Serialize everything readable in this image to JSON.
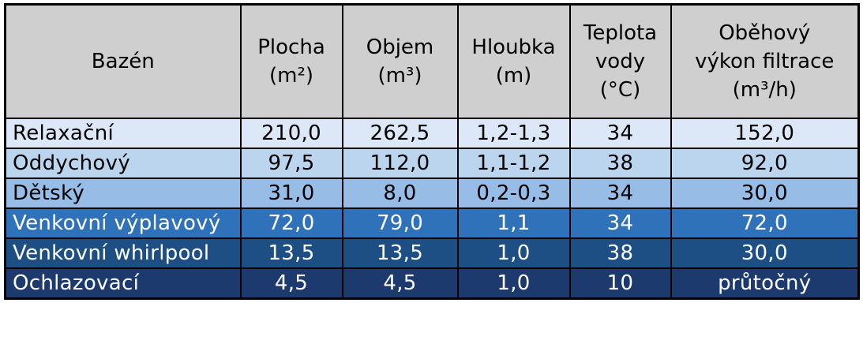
{
  "table": {
    "headers": [
      {
        "lines": [
          "Bazén"
        ]
      },
      {
        "lines": [
          "Plocha",
          "(m²)"
        ]
      },
      {
        "lines": [
          "Objem",
          "(m³)"
        ]
      },
      {
        "lines": [
          "Hloubka",
          "(m)"
        ]
      },
      {
        "lines": [
          "Teplota",
          "vody",
          "(°C)"
        ]
      },
      {
        "lines": [
          "Oběhový",
          "výkon filtrace",
          "(m³/h)"
        ]
      }
    ],
    "rows": [
      {
        "cells": [
          "Relaxační",
          "210,0",
          "262,5",
          "1,2-1,3",
          "34",
          "152,0"
        ],
        "bg": "#dce8f7",
        "fg": "#000000"
      },
      {
        "cells": [
          "Oddychový",
          "97,5",
          "112,0",
          "1,1-1,2",
          "38",
          "92,0"
        ],
        "bg": "#bcd5ee",
        "fg": "#000000"
      },
      {
        "cells": [
          "Dětský",
          "31,0",
          "8,0",
          "0,2-0,3",
          "34",
          "30,0"
        ],
        "bg": "#97bde6",
        "fg": "#000000"
      },
      {
        "cells": [
          "Venkovní výplavový",
          "72,0",
          "79,0",
          "1,1",
          "34",
          "72,0"
        ],
        "bg": "#2f72b9",
        "fg": "#ffffff"
      },
      {
        "cells": [
          "Venkovní whirlpool",
          "13,5",
          "13,5",
          "1,0",
          "38",
          "30,0"
        ],
        "bg": "#1d4f84",
        "fg": "#ffffff"
      },
      {
        "cells": [
          "Ochlazovací",
          "4,5",
          "4,5",
          "1,0",
          "10",
          "průtočný"
        ],
        "bg": "#1d3a6f",
        "fg": "#ffffff"
      }
    ]
  },
  "colors": {
    "header_bg": "#cfcfcf",
    "border": "#000000"
  }
}
